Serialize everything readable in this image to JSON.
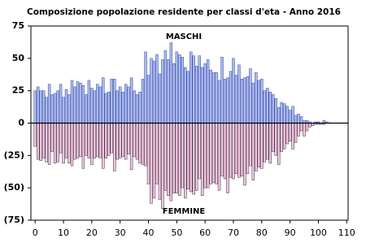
{
  "chart_data": {
    "type": "bar",
    "title": "Composizione popolazione residente per classi d'eta - Anno 2016",
    "x": [
      0,
      1,
      2,
      3,
      4,
      5,
      6,
      7,
      8,
      9,
      10,
      11,
      12,
      13,
      14,
      15,
      16,
      17,
      18,
      19,
      20,
      21,
      22,
      23,
      24,
      25,
      26,
      27,
      28,
      29,
      30,
      31,
      32,
      33,
      34,
      35,
      36,
      37,
      38,
      39,
      40,
      41,
      42,
      43,
      44,
      45,
      46,
      47,
      48,
      49,
      50,
      51,
      52,
      53,
      54,
      55,
      56,
      57,
      58,
      59,
      60,
      61,
      62,
      63,
      64,
      65,
      66,
      67,
      68,
      69,
      70,
      71,
      72,
      73,
      74,
      75,
      76,
      77,
      78,
      79,
      80,
      81,
      82,
      83,
      84,
      85,
      86,
      87,
      88,
      89,
      90,
      91,
      92,
      93,
      94,
      95,
      96,
      97,
      98,
      99,
      100,
      101,
      102,
      103
    ],
    "series": [
      {
        "name": "MASCHI",
        "color": "#aab9f2",
        "values": [
          25,
          28,
          25,
          25,
          20,
          30,
          22,
          23,
          25,
          30,
          20,
          26,
          22,
          33,
          28,
          32,
          31,
          29,
          22,
          33,
          27,
          25,
          30,
          28,
          35,
          23,
          24,
          34,
          34,
          25,
          28,
          24,
          30,
          28,
          35,
          25,
          22,
          24,
          34,
          55,
          37,
          50,
          48,
          53,
          38,
          49,
          56,
          49,
          62,
          46,
          55,
          53,
          51,
          43,
          40,
          55,
          52,
          44,
          52,
          43,
          46,
          49,
          41,
          39,
          39,
          33,
          51,
          34,
          35,
          40,
          50,
          37,
          45,
          34,
          35,
          36,
          42,
          31,
          39,
          33,
          34,
          25,
          27,
          24,
          22,
          19,
          12,
          16,
          15,
          13,
          10,
          13,
          6,
          7,
          5,
          2,
          2,
          1,
          0,
          1,
          1,
          0,
          2,
          1
        ]
      },
      {
        "name": "FEMMINE",
        "color": "#f6c4e4",
        "values": [
          -18,
          -28,
          -29,
          -27,
          -30,
          -32,
          -22,
          -31,
          -30,
          -23,
          -31,
          -27,
          -31,
          -33,
          -28,
          -27,
          -26,
          -35,
          -25,
          -27,
          -32,
          -27,
          -26,
          -27,
          -35,
          -27,
          -25,
          -23,
          -37,
          -28,
          -27,
          -26,
          -28,
          -24,
          -36,
          -26,
          -28,
          -31,
          -32,
          -33,
          -47,
          -62,
          -58,
          -47,
          -59,
          -66,
          -52,
          -56,
          -60,
          -54,
          -54,
          -56,
          -50,
          -58,
          -51,
          -53,
          -55,
          -52,
          -43,
          -56,
          -50,
          -50,
          -47,
          -46,
          -47,
          -52,
          -41,
          -43,
          -54,
          -42,
          -43,
          -39,
          -42,
          -41,
          -48,
          -39,
          -33,
          -44,
          -37,
          -34,
          -35,
          -30,
          -28,
          -31,
          -22,
          -25,
          -32,
          -22,
          -20,
          -16,
          -14,
          -20,
          -15,
          -10,
          -6,
          -10,
          -6,
          -3,
          -2,
          -1,
          -1,
          -1,
          -1,
          0
        ]
      }
    ],
    "xlim": [
      -1.5,
      110.5
    ],
    "xticks": [
      0,
      10,
      20,
      30,
      40,
      50,
      60,
      70,
      80,
      90,
      100,
      110
    ],
    "ylim": [
      -75,
      75
    ],
    "yticks": [
      {
        "value": -75,
        "label": "(75)"
      },
      {
        "value": -50,
        "label": "(50)"
      },
      {
        "value": -25,
        "label": "(25)"
      },
      0,
      25,
      50,
      75
    ]
  }
}
